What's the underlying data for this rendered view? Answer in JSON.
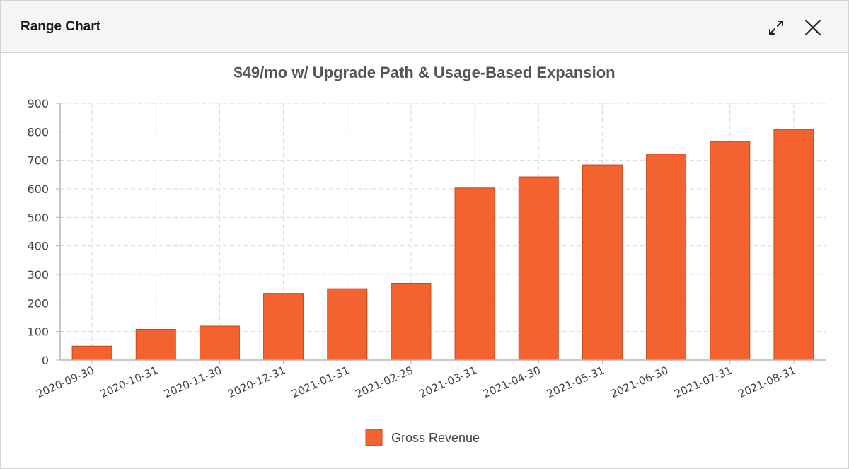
{
  "dialog": {
    "title": "Range Chart",
    "icons": {
      "expand": "expand-icon",
      "close": "close-icon"
    }
  },
  "colors": {
    "bar_fill": "#f4632f",
    "bar_stroke": "#c0481f",
    "grid": "#d9d9d9",
    "axis": "#b5b5b5"
  },
  "chart_data": {
    "type": "bar",
    "title": "$49/mo w/ Upgrade Path & Usage-Based Expansion",
    "xlabel": "",
    "ylabel": "",
    "categories": [
      "2020-09-30",
      "2020-10-31",
      "2020-11-30",
      "2020-12-31",
      "2021-01-31",
      "2021-02-28",
      "2021-03-31",
      "2021-04-30",
      "2021-05-31",
      "2021-06-30",
      "2021-07-31",
      "2021-08-31"
    ],
    "series": [
      {
        "name": "Gross Revenue",
        "values": [
          49,
          108,
          119,
          234,
          250,
          269,
          603,
          642,
          684,
          722,
          766,
          808
        ]
      }
    ],
    "ylim": [
      0,
      900
    ],
    "yticks": [
      0,
      100,
      200,
      300,
      400,
      500,
      600,
      700,
      800,
      900
    ],
    "grid": true,
    "legend": "bottom-center"
  }
}
